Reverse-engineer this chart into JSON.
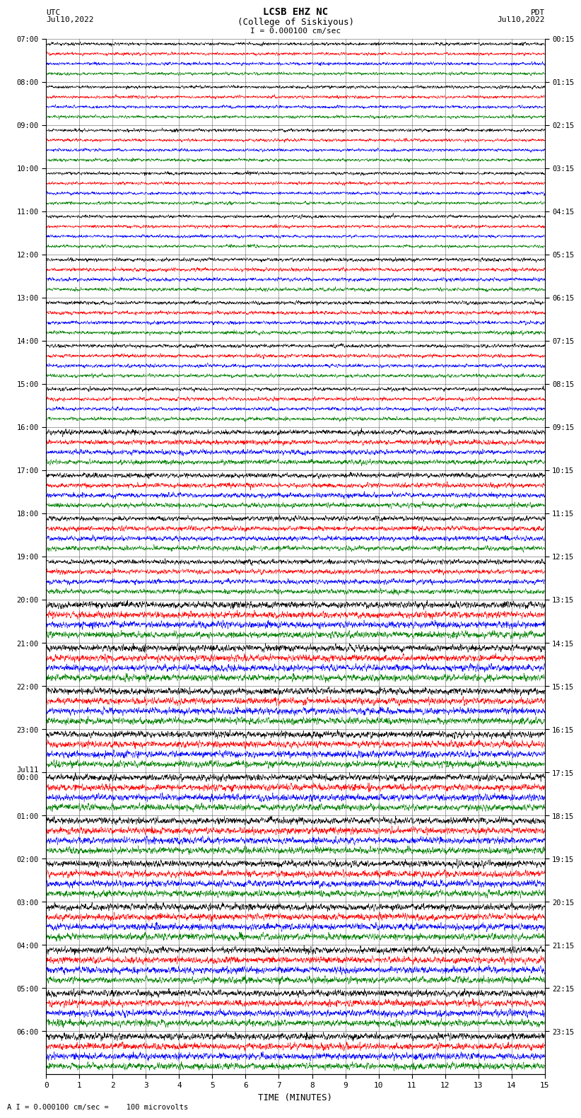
{
  "title_line1": "LCSB EHZ NC",
  "title_line2": "(College of Siskiyous)",
  "scale_label": "I = 0.000100 cm/sec",
  "left_header": "UTC",
  "left_date": "Jul10,2022",
  "right_header": "PDT",
  "right_date": "Jul10,2022",
  "xlabel": "TIME (MINUTES)",
  "footer_label": "A I = 0.000100 cm/sec =    100 microvolts",
  "left_times": [
    "07:00",
    "08:00",
    "09:00",
    "10:00",
    "11:00",
    "12:00",
    "13:00",
    "14:00",
    "15:00",
    "16:00",
    "17:00",
    "18:00",
    "19:00",
    "20:00",
    "21:00",
    "22:00",
    "23:00",
    "Jul11\n00:00",
    "01:00",
    "02:00",
    "03:00",
    "04:00",
    "05:00",
    "06:00"
  ],
  "right_times": [
    "00:15",
    "01:15",
    "02:15",
    "03:15",
    "04:15",
    "05:15",
    "06:15",
    "07:15",
    "08:15",
    "09:15",
    "10:15",
    "11:15",
    "12:15",
    "13:15",
    "14:15",
    "15:15",
    "16:15",
    "17:15",
    "18:15",
    "19:15",
    "20:15",
    "21:15",
    "22:15",
    "23:15"
  ],
  "n_rows": 24,
  "traces_per_row": 4,
  "minutes_per_row": 15,
  "colors": [
    "black",
    "red",
    "blue",
    "green"
  ],
  "background_color": "white",
  "figwidth": 8.5,
  "figheight": 16.13
}
